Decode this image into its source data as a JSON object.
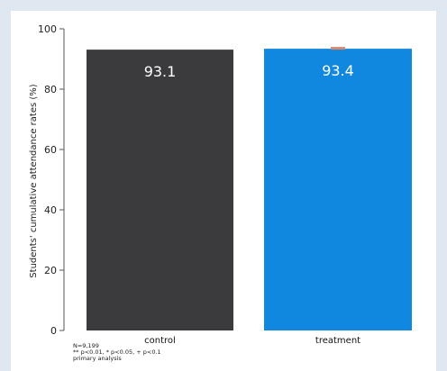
{
  "chart_data": {
    "type": "bar",
    "categories": [
      "control",
      "treatment"
    ],
    "values": [
      93.1,
      93.4
    ],
    "value_labels": [
      "93.1",
      "93.4"
    ],
    "bar_colors": [
      "#3b3b3e",
      "#1188e0"
    ],
    "error_bar_color": "#d9886a",
    "ylabel": "Students' cumulative attendance rates (%)",
    "ylim": [
      0,
      100
    ],
    "yticks": [
      "0",
      "20",
      "40",
      "60",
      "80",
      "100"
    ],
    "ytick_values": [
      0,
      20,
      40,
      60,
      80,
      100
    ],
    "grid": false
  },
  "footnotes": {
    "n": "N=9,199",
    "significance": "** p<0.01, * p<0.05, + p<0.1",
    "analysis": "primary analysis"
  }
}
